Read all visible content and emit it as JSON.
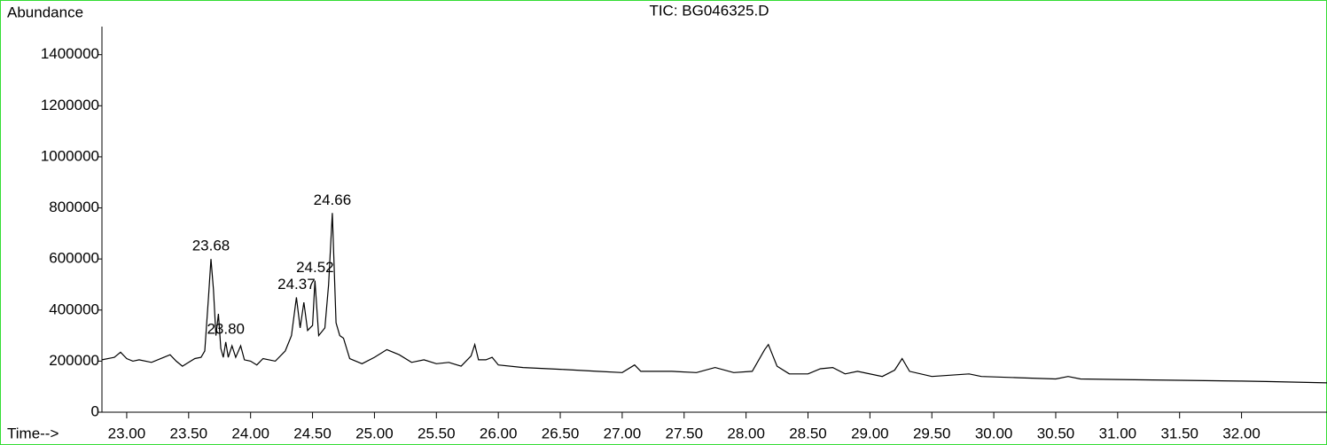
{
  "chart_data": {
    "type": "line",
    "title": "TIC: BG046325.D",
    "y_label": "Abundance",
    "x_label": "Time-->",
    "series": [
      {
        "color": "#000000",
        "x": [
          22.8,
          22.9,
          22.95,
          23.0,
          23.05,
          23.1,
          23.2,
          23.3,
          23.35,
          23.4,
          23.45,
          23.5,
          23.55,
          23.6,
          23.63,
          23.66,
          23.68,
          23.7,
          23.72,
          23.74,
          23.76,
          23.78,
          23.8,
          23.82,
          23.85,
          23.88,
          23.92,
          23.95,
          24.0,
          24.05,
          24.1,
          24.2,
          24.28,
          24.33,
          24.37,
          24.4,
          24.43,
          24.46,
          24.5,
          24.52,
          24.55,
          24.6,
          24.63,
          24.66,
          24.69,
          24.72,
          24.75,
          24.8,
          24.9,
          25.0,
          25.1,
          25.2,
          25.3,
          25.4,
          25.5,
          25.6,
          25.7,
          25.78,
          25.81,
          25.84,
          25.9,
          25.95,
          26.0,
          26.2,
          26.5,
          26.8,
          27.0,
          27.1,
          27.15,
          27.4,
          27.6,
          27.75,
          27.9,
          28.05,
          28.15,
          28.18,
          28.25,
          28.35,
          28.5,
          28.6,
          28.7,
          28.8,
          28.9,
          29.1,
          29.2,
          29.26,
          29.32,
          29.5,
          29.8,
          29.9,
          30.2,
          30.5,
          30.6,
          30.7,
          31.0,
          31.5,
          32.0,
          32.2,
          32.69
        ],
        "values": [
          205000,
          215000,
          235000,
          210000,
          200000,
          205000,
          195000,
          215000,
          225000,
          200000,
          180000,
          195000,
          210000,
          215000,
          240000,
          450000,
          600000,
          480000,
          300000,
          385000,
          250000,
          215000,
          275000,
          215000,
          260000,
          215000,
          260000,
          205000,
          200000,
          185000,
          210000,
          200000,
          240000,
          300000,
          450000,
          330000,
          430000,
          320000,
          340000,
          515000,
          300000,
          330000,
          500000,
          780000,
          350000,
          300000,
          290000,
          210000,
          190000,
          215000,
          245000,
          225000,
          195000,
          205000,
          190000,
          195000,
          180000,
          220000,
          265000,
          205000,
          205000,
          215000,
          185000,
          175000,
          168000,
          160000,
          155000,
          185000,
          160000,
          160000,
          155000,
          175000,
          155000,
          160000,
          245000,
          265000,
          180000,
          150000,
          150000,
          170000,
          175000,
          150000,
          160000,
          140000,
          165000,
          210000,
          160000,
          140000,
          150000,
          140000,
          135000,
          130000,
          140000,
          130000,
          128000,
          125000,
          122000,
          120000,
          115000
        ]
      }
    ],
    "annotations": [
      {
        "text": "23.68",
        "x": 23.68,
        "y": 600000
      },
      {
        "text": "23.80",
        "x": 23.8,
        "y": 275000
      },
      {
        "text": "24.37",
        "x": 24.37,
        "y": 450000
      },
      {
        "text": "24.52",
        "x": 24.52,
        "y": 515000
      },
      {
        "text": "24.66",
        "x": 24.66,
        "y": 780000
      }
    ],
    "xlim": [
      22.8,
      32.69
    ],
    "ylim": [
      0,
      1510000
    ],
    "xticks": [
      {
        "value": 23,
        "label": "23.00"
      },
      {
        "value": 23.5,
        "label": "23.50"
      },
      {
        "value": 24,
        "label": "24.00"
      },
      {
        "value": 24.5,
        "label": "24.50"
      },
      {
        "value": 25,
        "label": "25.00"
      },
      {
        "value": 25.5,
        "label": "25.50"
      },
      {
        "value": 26,
        "label": "26.00"
      },
      {
        "value": 26.5,
        "label": "26.50"
      },
      {
        "value": 27,
        "label": "27.00"
      },
      {
        "value": 27.5,
        "label": "27.50"
      },
      {
        "value": 28,
        "label": "28.00"
      },
      {
        "value": 28.5,
        "label": "28.50"
      },
      {
        "value": 29,
        "label": "29.00"
      },
      {
        "value": 29.5,
        "label": "29.50"
      },
      {
        "value": 30,
        "label": "30.00"
      },
      {
        "value": 30.5,
        "label": "30.50"
      },
      {
        "value": 31,
        "label": "31.00"
      },
      {
        "value": 31.5,
        "label": "31.50"
      },
      {
        "value": 32,
        "label": "32.00"
      }
    ],
    "yticks": [
      0,
      200000,
      400000,
      600000,
      800000,
      1000000,
      1200000,
      1400000
    ]
  }
}
